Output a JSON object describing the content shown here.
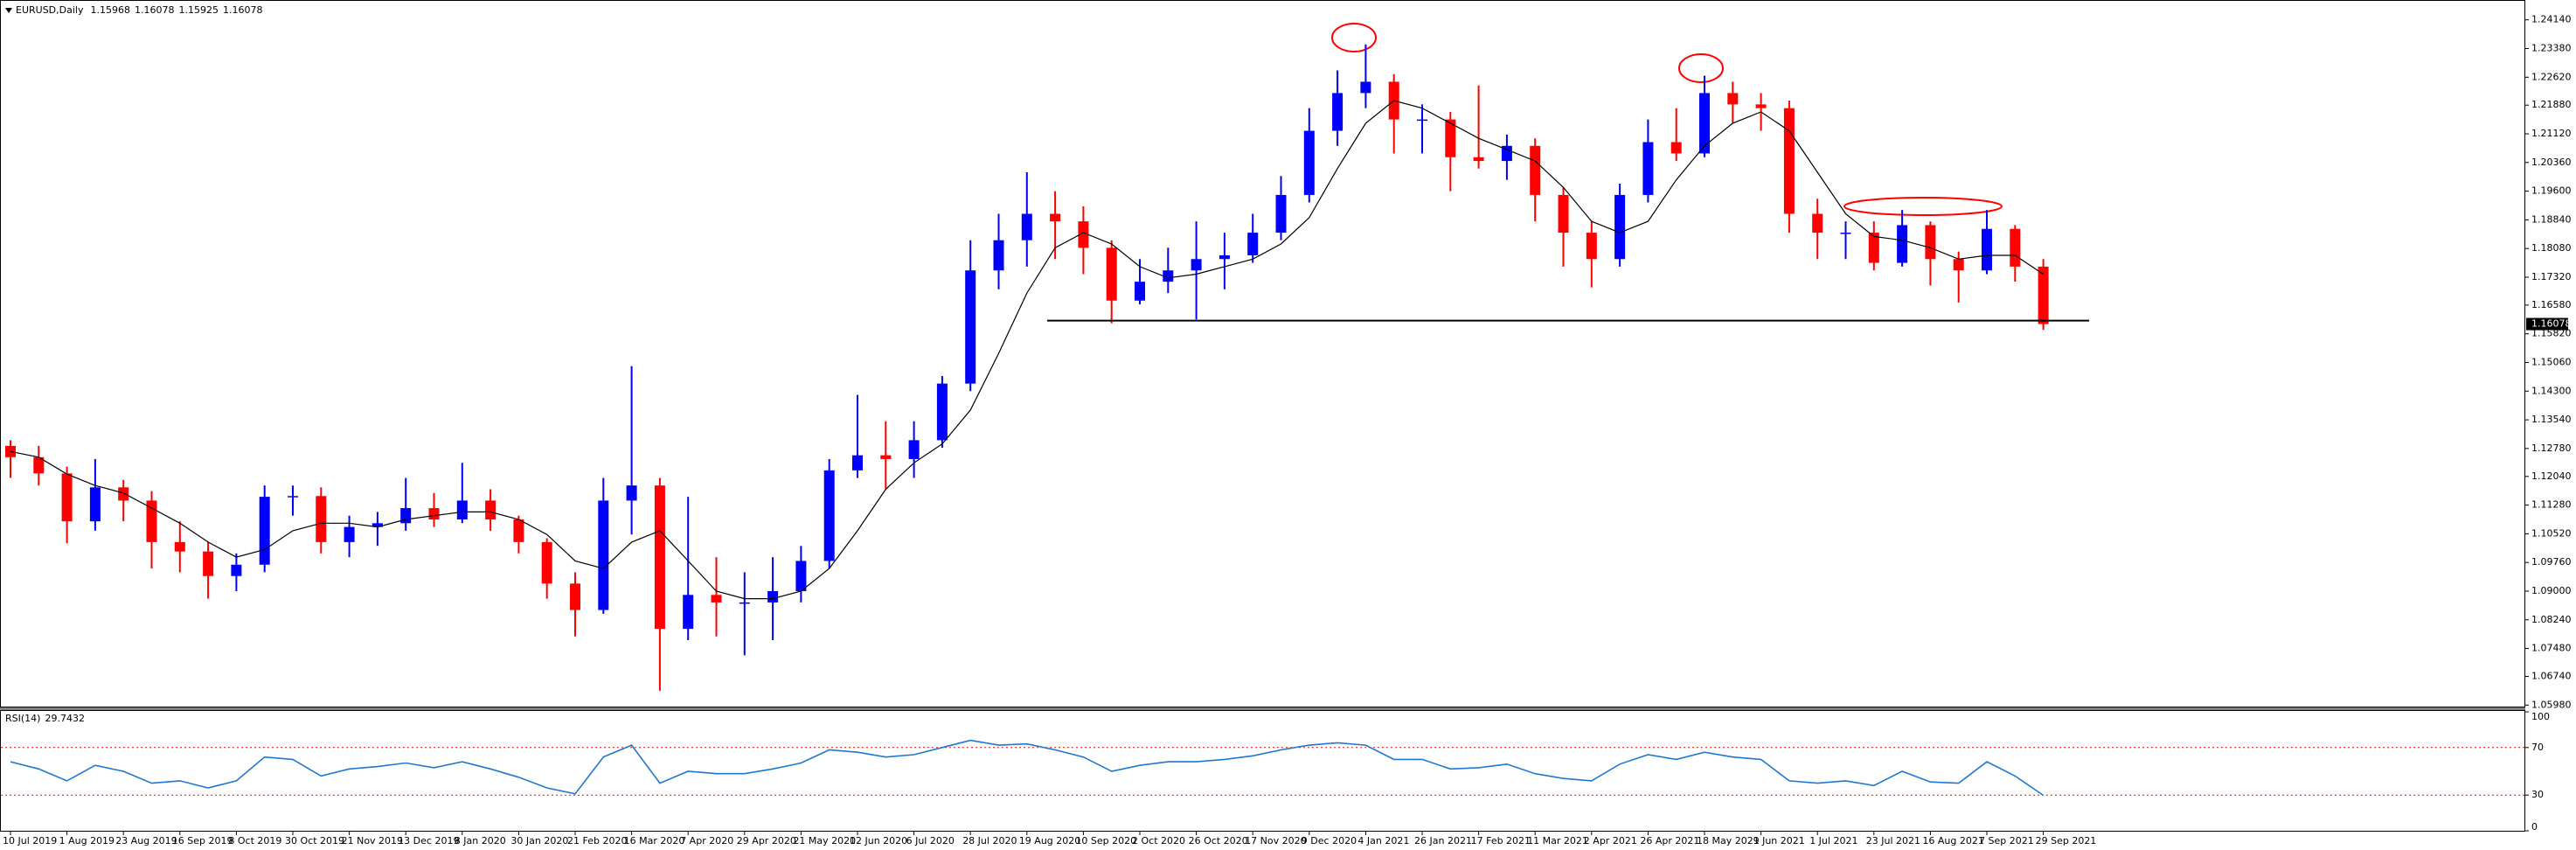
{
  "chart_data": {
    "type": "candlestick",
    "header": {
      "symbol": "EURUSD,Daily",
      "ohlc": [
        1.15968,
        1.16078,
        1.15925,
        1.16078
      ]
    },
    "x_labels": [
      "10 Jul 2019",
      "1 Aug 2019",
      "23 Aug 2019",
      "16 Sep 2019",
      "8 Oct 2019",
      "30 Oct 2019",
      "21 Nov 2019",
      "13 Dec 2019",
      "8 Jan 2020",
      "30 Jan 2020",
      "21 Feb 2020",
      "16 Mar 2020",
      "7 Apr 2020",
      "29 Apr 2020",
      "21 May 2020",
      "12 Jun 2020",
      "6 Jul 2020",
      "28 Jul 2020",
      "19 Aug 2020",
      "10 Sep 2020",
      "2 Oct 2020",
      "26 Oct 2020",
      "17 Nov 2020",
      "9 Dec 2020",
      "4 Jan 2021",
      "26 Jan 2021",
      "17 Feb 2021",
      "11 Mar 2021",
      "2 Apr 2021",
      "26 Apr 2021",
      "18 May 2021",
      "9 Jun 2021",
      "1 Jul 2021",
      "23 Jul 2021",
      "16 Aug 2021",
      "7 Sep 2021",
      "29 Sep 2021"
    ],
    "open": [
      1.1285,
      1.1255,
      1.1212,
      1.1085,
      1.1175,
      1.114,
      1.103,
      1.1005,
      1.094,
      1.097,
      1.115,
      1.1152,
      1.103,
      1.107,
      1.108,
      1.112,
      1.109,
      1.114,
      1.109,
      1.103,
      1.092,
      1.085,
      1.114,
      1.118,
      1.08,
      1.089,
      1.087,
      1.087,
      1.09,
      1.098,
      1.122,
      1.126,
      1.125,
      1.13,
      1.145,
      1.175,
      1.183,
      1.19,
      1.188,
      1.181,
      1.167,
      1.172,
      1.175,
      1.178,
      1.179,
      1.185,
      1.195,
      1.212,
      1.222,
      1.225,
      1.215,
      1.215,
      1.205,
      1.204,
      1.208,
      1.195,
      1.185,
      1.178,
      1.195,
      1.209,
      1.206,
      1.222,
      1.219,
      1.218,
      1.19,
      1.185,
      1.185,
      1.177,
      1.187,
      1.178,
      1.175,
      1.186,
      1.176
    ],
    "high": [
      1.13,
      1.1285,
      1.123,
      1.125,
      1.1195,
      1.1165,
      1.1085,
      1.103,
      1.1,
      1.118,
      1.118,
      1.1175,
      1.11,
      1.111,
      1.12,
      1.116,
      1.124,
      1.117,
      1.11,
      1.104,
      1.095,
      1.12,
      1.1496,
      1.12,
      1.115,
      1.099,
      1.095,
      1.099,
      1.102,
      1.125,
      1.142,
      1.135,
      1.135,
      1.147,
      1.183,
      1.19,
      1.201,
      1.196,
      1.192,
      1.183,
      1.178,
      1.181,
      1.188,
      1.185,
      1.19,
      1.2,
      1.218,
      1.228,
      1.2349,
      1.227,
      1.219,
      1.217,
      1.224,
      1.211,
      1.21,
      1.197,
      1.188,
      1.198,
      1.215,
      1.218,
      1.2266,
      1.225,
      1.222,
      1.22,
      1.194,
      1.188,
      1.188,
      1.191,
      1.188,
      1.18,
      1.191,
      1.187,
      1.178
    ],
    "low": [
      1.12,
      1.118,
      1.1027,
      1.106,
      1.1085,
      1.096,
      1.095,
      1.088,
      1.09,
      1.095,
      1.11,
      1.1,
      1.099,
      1.102,
      1.106,
      1.107,
      1.108,
      1.106,
      1.1,
      1.088,
      1.078,
      1.084,
      1.105,
      1.0636,
      1.077,
      1.078,
      1.073,
      1.077,
      1.087,
      1.096,
      1.12,
      1.117,
      1.12,
      1.128,
      1.143,
      1.17,
      1.176,
      1.178,
      1.174,
      1.161,
      1.166,
      1.169,
      1.162,
      1.17,
      1.177,
      1.183,
      1.193,
      1.208,
      1.218,
      1.206,
      1.206,
      1.196,
      1.202,
      1.199,
      1.188,
      1.176,
      1.1705,
      1.176,
      1.193,
      1.204,
      1.205,
      1.214,
      1.212,
      1.185,
      1.178,
      1.178,
      1.175,
      1.176,
      1.171,
      1.1665,
      1.174,
      1.172,
      1.15925
    ],
    "close": [
      1.1255,
      1.1212,
      1.1085,
      1.1175,
      1.114,
      1.103,
      1.1005,
      1.094,
      1.097,
      1.115,
      1.1152,
      1.103,
      1.107,
      1.108,
      1.112,
      1.109,
      1.114,
      1.109,
      1.103,
      1.092,
      1.085,
      1.114,
      1.118,
      1.08,
      1.089,
      1.087,
      1.087,
      1.09,
      1.098,
      1.122,
      1.126,
      1.125,
      1.13,
      1.145,
      1.175,
      1.183,
      1.19,
      1.188,
      1.181,
      1.167,
      1.172,
      1.175,
      1.178,
      1.179,
      1.185,
      1.195,
      1.212,
      1.222,
      1.225,
      1.215,
      1.215,
      1.205,
      1.204,
      1.208,
      1.195,
      1.185,
      1.178,
      1.195,
      1.209,
      1.206,
      1.222,
      1.219,
      1.218,
      1.19,
      1.185,
      1.185,
      1.177,
      1.187,
      1.178,
      1.175,
      1.186,
      1.176,
      1.16078
    ],
    "ma": {
      "color": "#000000",
      "values": [
        1.127,
        1.1255,
        1.121,
        1.118,
        1.116,
        1.112,
        1.108,
        1.103,
        1.099,
        1.101,
        1.106,
        1.108,
        1.108,
        1.107,
        1.109,
        1.11,
        1.111,
        1.111,
        1.109,
        1.105,
        1.098,
        1.096,
        1.103,
        1.106,
        1.098,
        1.09,
        1.088,
        1.088,
        1.09,
        1.096,
        1.106,
        1.117,
        1.124,
        1.129,
        1.138,
        1.153,
        1.169,
        1.181,
        1.185,
        1.182,
        1.176,
        1.173,
        1.174,
        1.176,
        1.178,
        1.182,
        1.189,
        1.202,
        1.214,
        1.22,
        1.218,
        1.214,
        1.21,
        1.207,
        1.204,
        1.197,
        1.188,
        1.185,
        1.188,
        1.199,
        1.208,
        1.214,
        1.217,
        1.212,
        1.201,
        1.19,
        1.184,
        1.183,
        1.181,
        1.178,
        1.179,
        1.179,
        1.174
      ]
    },
    "up_color": "#0000ff",
    "down_color": "#ff0000",
    "ylim": [
      1.0594,
      1.2462
    ],
    "yticks": [
      {
        "value": 1.2414,
        "label": "1.24140"
      },
      {
        "value": 1.2338,
        "label": "1.23380"
      },
      {
        "value": 1.2262,
        "label": "1.22620"
      },
      {
        "value": 1.2188,
        "label": "1.21880"
      },
      {
        "value": 1.2112,
        "label": "1.21120"
      },
      {
        "value": 1.2036,
        "label": "1.20360"
      },
      {
        "value": 1.196,
        "label": "1.19600"
      },
      {
        "value": 1.1884,
        "label": "1.18840"
      },
      {
        "value": 1.1808,
        "label": "1.18080"
      },
      {
        "value": 1.1732,
        "label": "1.17320"
      },
      {
        "value": 1.1658,
        "label": "1.16580"
      },
      {
        "value": 1.1582,
        "label": "1.15820"
      },
      {
        "value": 1.1506,
        "label": "1.15060"
      },
      {
        "value": 1.143,
        "label": "1.14300"
      },
      {
        "value": 1.1354,
        "label": "1.13540"
      },
      {
        "value": 1.1278,
        "label": "1.12780"
      },
      {
        "value": 1.1204,
        "label": "1.12040"
      },
      {
        "value": 1.1128,
        "label": "1.11280"
      },
      {
        "value": 1.1052,
        "label": "1.10520"
      },
      {
        "value": 1.0976,
        "label": "1.09760"
      },
      {
        "value": 1.09,
        "label": "1.09000"
      },
      {
        "value": 1.0824,
        "label": "1.08240"
      },
      {
        "value": 1.0748,
        "label": "1.07480"
      },
      {
        "value": 1.0674,
        "label": "1.06740"
      },
      {
        "value": 1.0598,
        "label": "1.05980"
      }
    ],
    "current_price": 1.16078,
    "support_line": 1.1617,
    "rsi": {
      "label": "RSI(14)",
      "current": 29.7432,
      "color": "#1e78d2",
      "level_color": "#ff0000",
      "values": [
        58,
        52,
        42,
        55,
        50,
        40,
        42,
        36,
        42,
        62,
        60,
        46,
        52,
        54,
        57,
        53,
        58,
        52,
        45,
        36,
        31,
        62,
        72,
        40,
        50,
        48,
        48,
        52,
        57,
        68,
        66,
        62,
        64,
        70,
        76,
        72,
        73,
        68,
        62,
        50,
        55,
        58,
        58,
        60,
        63,
        68,
        72,
        74,
        72,
        60,
        60,
        52,
        53,
        56,
        48,
        44,
        42,
        56,
        64,
        60,
        66,
        62,
        60,
        42,
        40,
        42,
        38,
        50,
        41,
        40,
        58,
        46,
        29.7432
      ],
      "ylim": [
        0,
        100
      ],
      "yticks": [
        100,
        70,
        30,
        0
      ],
      "levels": [
        70,
        30
      ]
    }
  }
}
